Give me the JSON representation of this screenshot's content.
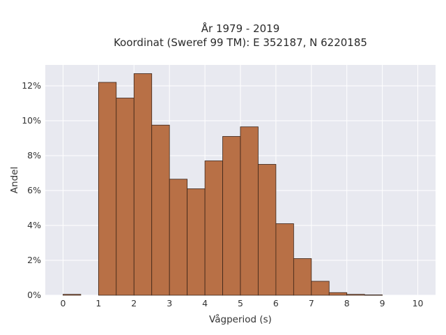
{
  "chart_data": {
    "type": "bar",
    "title": "År 1979 - 2019",
    "subtitle": "Koordinat (Sweref 99 TM): E 352187, N 6220185",
    "xlabel": "Vågperiod (s)",
    "ylabel": "Andel",
    "xlim": [
      -0.5,
      10.5
    ],
    "ylim": [
      0,
      13.2
    ],
    "x_ticks": [
      0,
      1,
      2,
      3,
      4,
      5,
      6,
      7,
      8,
      9,
      10
    ],
    "y_ticks": [
      0,
      2,
      4,
      6,
      8,
      10,
      12
    ],
    "y_tick_suffix": "%",
    "bin_width": 0.5,
    "bins": [
      {
        "start": 0.0,
        "value": 0.05
      },
      {
        "start": 1.0,
        "value": 12.2
      },
      {
        "start": 1.5,
        "value": 11.3
      },
      {
        "start": 2.0,
        "value": 12.7
      },
      {
        "start": 2.5,
        "value": 9.75
      },
      {
        "start": 3.0,
        "value": 6.65
      },
      {
        "start": 3.5,
        "value": 6.1
      },
      {
        "start": 4.0,
        "value": 7.7
      },
      {
        "start": 4.5,
        "value": 9.1
      },
      {
        "start": 5.0,
        "value": 9.65
      },
      {
        "start": 5.5,
        "value": 7.5
      },
      {
        "start": 6.0,
        "value": 4.1
      },
      {
        "start": 6.5,
        "value": 2.1
      },
      {
        "start": 7.0,
        "value": 0.8
      },
      {
        "start": 7.5,
        "value": 0.15
      },
      {
        "start": 8.0,
        "value": 0.05
      },
      {
        "start": 8.5,
        "value": 0.02
      }
    ],
    "bar_color": "#b5693c",
    "bar_edge_color": "#3a2418",
    "plot_background": "#e8e9f0",
    "grid": true,
    "grid_color": "#ffffff"
  }
}
